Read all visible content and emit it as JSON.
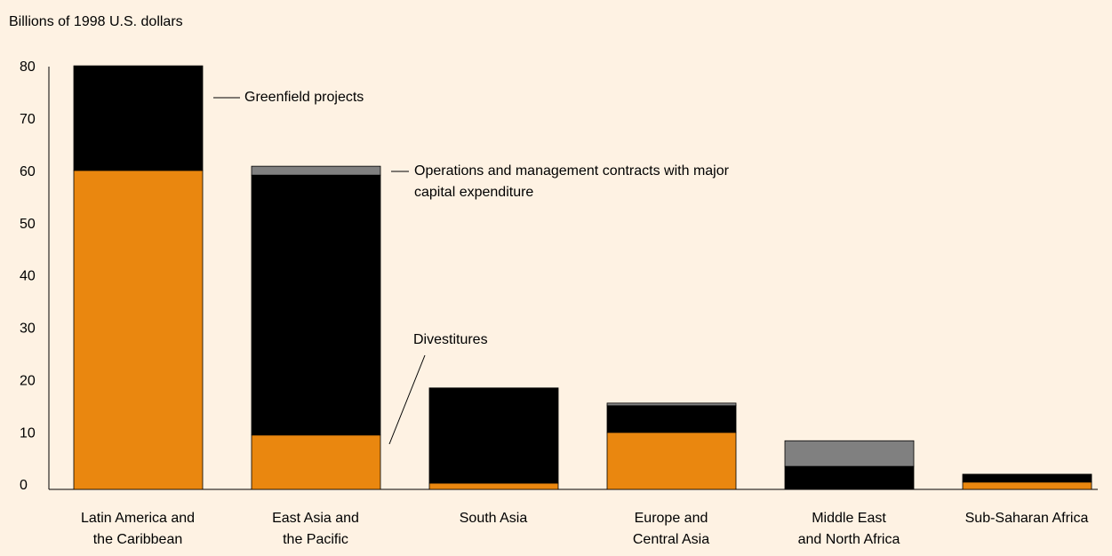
{
  "chart_data": {
    "type": "stacked_bar",
    "y_axis_label": "Billions of 1998 U.S. dollars",
    "categories": [
      "Latin America and the Caribbean",
      "East Asia and the Pacific",
      "South Asia",
      "Europe and Central Asia",
      "Middle East and North Africa",
      "Sub-Saharan Africa"
    ],
    "series": [
      {
        "name": "Divestitures",
        "color": "#ea870f",
        "values": [
          61,
          10.4,
          1.2,
          10.9,
          0,
          1.4
        ]
      },
      {
        "name": "Greenfield projects",
        "color": "#000000",
        "values": [
          20,
          49.7,
          18.2,
          5.1,
          4.4,
          1.5
        ]
      },
      {
        "name": "Operations and management contracts with major capital expenditure",
        "color": "#808080",
        "values": [
          0,
          1.7,
          0,
          0.5,
          4.9,
          0
        ]
      }
    ],
    "ylim": [
      0,
      80
    ],
    "yticks": [
      0,
      10,
      20,
      30,
      40,
      50,
      60,
      70,
      80
    ],
    "grid": false
  }
}
